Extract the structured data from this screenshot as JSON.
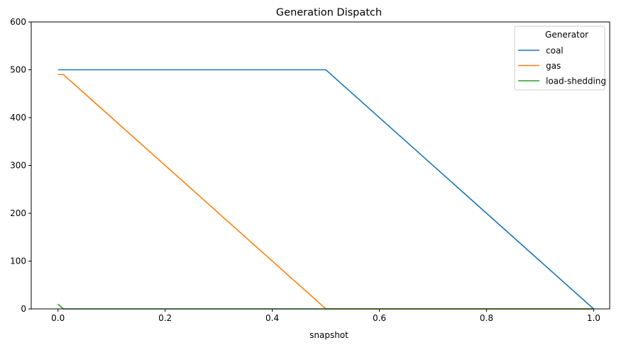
{
  "chart_data": {
    "type": "line",
    "title": "Generation Dispatch",
    "xlabel": "snapshot",
    "ylabel": "",
    "xlim": [
      -0.05,
      1.03
    ],
    "ylim": [
      0,
      600
    ],
    "xticks": [
      0.0,
      0.2,
      0.4,
      0.6,
      0.8,
      1.0
    ],
    "xtick_labels": [
      "0.0",
      "0.2",
      "0.4",
      "0.6",
      "0.8",
      "1.0"
    ],
    "yticks": [
      0,
      100,
      200,
      300,
      400,
      500,
      600
    ],
    "ytick_labels": [
      "0",
      "100",
      "200",
      "300",
      "400",
      "500",
      "600"
    ],
    "grid": false,
    "legend": {
      "title": "Generator",
      "placement": "top-right"
    },
    "series": [
      {
        "name": "coal",
        "color": "#1f77b4",
        "x": [
          0.0,
          0.01,
          0.5,
          1.0
        ],
        "y": [
          500,
          500,
          500,
          0
        ]
      },
      {
        "name": "gas",
        "color": "#ff7f0e",
        "x": [
          0.0,
          0.01,
          0.5,
          1.0
        ],
        "y": [
          490,
          490,
          0,
          0
        ]
      },
      {
        "name": "load-shedding",
        "color": "#2ca02c",
        "x": [
          0.0,
          0.01,
          0.5,
          1.0
        ],
        "y": [
          10,
          0,
          0,
          0
        ]
      }
    ]
  }
}
